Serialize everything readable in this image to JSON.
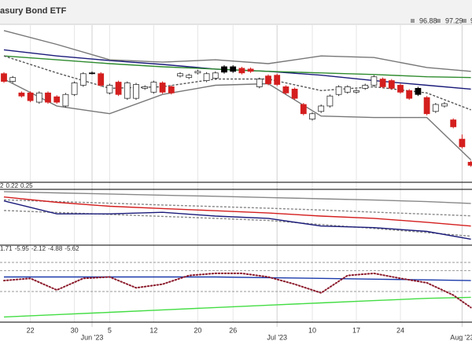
{
  "chart_data": [
    {
      "type": "candlestick",
      "title": "asury Bond ETF",
      "quote": [
        96.88,
        97.29,
        9
      ],
      "categories": [
        null,
        null,
        null,
        "22",
        null,
        null,
        null,
        null,
        "30",
        null,
        null,
        null,
        "5",
        null,
        null,
        null,
        null,
        "12",
        null,
        null,
        null,
        null,
        "20",
        null,
        null,
        null,
        "26",
        null,
        null,
        null,
        null,
        null,
        null,
        null,
        null,
        "10",
        null,
        null,
        null,
        null,
        "17",
        null,
        null,
        null,
        null,
        "24",
        null,
        null,
        null,
        null,
        null,
        null,
        null,
        null
      ],
      "months": [
        null,
        null,
        null,
        null,
        null,
        null,
        null,
        null,
        null,
        null,
        "Jun '23",
        null,
        null,
        null,
        null,
        null,
        null,
        null,
        null,
        null,
        null,
        null,
        null,
        null,
        null,
        null,
        null,
        null,
        null,
        null,
        null,
        "Jul '23",
        null,
        null,
        null,
        null,
        null,
        null,
        null,
        null,
        null,
        null,
        null,
        null,
        null,
        null,
        null,
        null,
        null,
        null,
        null,
        null,
        "Aug '23",
        null
      ],
      "open": [
        98.67,
        98.37,
        97.92,
        97.92,
        97.56,
        97.92,
        97.77,
        97.41,
        97.86,
        98.22,
        98.7,
        98.67,
        97.92,
        98.34,
        97.71,
        97.71,
        98.1,
        97.95,
        98.31,
        98.16,
        98.58,
        98.52,
        98.7,
        98.4,
        98.49,
        98.94,
        98.94,
        98.88,
        98.85,
        98.16,
        98.58,
        98.61,
        98.16,
        98.07,
        97.47,
        96.9,
        97.2,
        97.41,
        97.86,
        97.95,
        97.95,
        98.1,
        98.22,
        98.46,
        98.4,
        98.22,
        98.01,
        98.1,
        97.74,
        97.2,
        97.41,
        96.87,
        96.12,
        95.22
      ],
      "high": [
        98.73,
        98.58,
        97.98,
        97.98,
        97.98,
        97.98,
        97.83,
        97.92,
        98.37,
        98.73,
        98.76,
        98.73,
        98.28,
        98.4,
        98.37,
        98.31,
        98.22,
        98.4,
        98.37,
        98.22,
        98.73,
        98.67,
        98.82,
        98.73,
        98.76,
        99.0,
        99.0,
        98.94,
        98.91,
        98.52,
        98.64,
        98.67,
        98.22,
        98.13,
        97.53,
        97.17,
        97.47,
        97.86,
        98.22,
        98.22,
        98.07,
        98.28,
        98.61,
        98.52,
        98.46,
        98.28,
        98.07,
        98.16,
        97.8,
        97.53,
        97.56,
        96.93,
        96.3,
        95.28
      ],
      "low": [
        98.31,
        98.31,
        97.74,
        97.56,
        97.5,
        97.5,
        97.5,
        97.35,
        97.8,
        98.16,
        98.64,
        98.16,
        97.86,
        97.8,
        97.65,
        97.65,
        98.04,
        97.89,
        97.89,
        97.86,
        98.52,
        98.46,
        98.64,
        98.34,
        98.43,
        98.67,
        98.7,
        98.64,
        98.7,
        98.1,
        98.22,
        98.19,
        97.86,
        97.65,
        97.05,
        96.84,
        97.14,
        97.35,
        97.8,
        97.89,
        97.89,
        98.04,
        98.16,
        98.1,
        98.04,
        97.89,
        97.65,
        97.8,
        97.05,
        97.14,
        97.35,
        96.54,
        95.76,
        95.04
      ],
      "close": [
        98.37,
        98.52,
        97.8,
        97.62,
        97.92,
        97.56,
        97.56,
        97.86,
        98.31,
        98.67,
        98.68,
        98.22,
        98.22,
        97.86,
        98.31,
        98.25,
        98.16,
        98.34,
        97.95,
        97.92,
        98.67,
        98.61,
        98.76,
        98.67,
        98.7,
        98.73,
        98.76,
        98.7,
        98.76,
        98.46,
        98.28,
        98.25,
        97.92,
        97.71,
        97.11,
        97.11,
        97.41,
        97.8,
        98.16,
        98.16,
        98.01,
        98.22,
        98.55,
        98.16,
        98.1,
        97.95,
        97.71,
        97.86,
        97.11,
        97.47,
        97.5,
        96.6,
        95.82,
        95.1
      ],
      "colors": [
        "#d41e1e",
        "#ffffff",
        "#d41e1e",
        "#d41e1e",
        "#ffffff",
        "#d41e1e",
        "#d41e1e",
        "#ffffff",
        "#ffffff",
        "#ffffff",
        "#000000",
        "#d41e1e",
        "#ffffff",
        "#d41e1e",
        "#ffffff",
        "#ffffff",
        "#ffffff",
        "#ffffff",
        "#d41e1e",
        "#d41e1e",
        "#ffffff",
        "#ffffff",
        "#ffffff",
        "#ffffff",
        "#ffffff",
        "#000000",
        "#000000",
        "#d41e1e",
        "#d41e1e",
        "#ffffff",
        "#d41e1e",
        "#d41e1e",
        "#d41e1e",
        "#d41e1e",
        "#d41e1e",
        "#ffffff",
        "#ffffff",
        "#ffffff",
        "#ffffff",
        "#ffffff",
        "#ffffff",
        "#ffffff",
        "#ffffff",
        "#d41e1e",
        "#d41e1e",
        "#d41e1e",
        "#d41e1e",
        "#000000",
        "#d41e1e",
        "#ffffff",
        "#ffffff",
        "#d41e1e",
        "#d41e1e",
        "#d41e1e"
      ],
      "ylim": [
        94.5,
        100.5
      ],
      "series": [
        {
          "color": "#1a1a7a",
          "x": [
            0,
            6,
            12,
            18,
            24,
            30,
            36,
            42,
            48,
            53
          ],
          "values": [
            99.6,
            99.36,
            99.18,
            99.03,
            98.85,
            98.76,
            98.61,
            98.4,
            98.22,
            98.07
          ]
        },
        {
          "color": "#2e8b2e",
          "x": [
            0,
            6,
            12,
            18,
            24,
            30,
            36,
            42,
            48,
            53
          ],
          "values": [
            99.36,
            99.21,
            99.06,
            98.94,
            98.85,
            98.76,
            98.7,
            98.64,
            98.55,
            98.52
          ]
        },
        {
          "color": "#777777",
          "x": [
            0,
            6,
            12,
            18,
            24,
            30,
            36,
            42,
            48,
            53
          ],
          "values": [
            100.35,
            99.81,
            99.21,
            99.12,
            99.21,
            99.06,
            99.36,
            99.3,
            98.91,
            98.76
          ]
        },
        {
          "color": "#777777",
          "x": [
            0,
            6,
            12,
            18,
            24,
            30,
            36,
            42,
            48,
            53
          ],
          "values": [
            98.46,
            97.41,
            97.11,
            97.86,
            98.22,
            98.28,
            97.02,
            96.96,
            96.96,
            95.31
          ]
        },
        {
          "color": "#555555",
          "dash": true,
          "x": [
            0,
            6,
            12,
            18,
            24,
            30,
            36,
            42,
            48,
            53
          ],
          "values": [
            99.36,
            98.7,
            98.1,
            98.16,
            98.46,
            98.46,
            98.01,
            98.16,
            97.92,
            97.26
          ]
        }
      ]
    },
    {
      "type": "line",
      "legend_values": [
        2,
        0.22,
        0.25
      ],
      "legend_colors": [
        "#1a1a7a",
        "#d41e1e",
        "#777777"
      ],
      "ylim": [
        0.05,
        0.35
      ],
      "series": [
        {
          "color": "#888888",
          "x": [
            0,
            6,
            12,
            18,
            24,
            30,
            36,
            42,
            48,
            53
          ],
          "values": [
            0.346,
            0.339,
            0.333,
            0.326,
            0.32,
            0.313,
            0.306,
            0.299,
            0.29,
            0.28
          ]
        },
        {
          "color": "#888888",
          "dash": true,
          "x": [
            0,
            6,
            12,
            18,
            24,
            30,
            36,
            42,
            48,
            53
          ],
          "values": [
            0.3,
            0.29,
            0.281,
            0.271,
            0.262,
            0.253,
            0.243,
            0.231,
            0.22,
            0.21
          ]
        },
        {
          "color": "#888888",
          "dash": true,
          "x": [
            0,
            6,
            12,
            18,
            24,
            30,
            36,
            42,
            48,
            53
          ],
          "values": [
            0.24,
            0.229,
            0.218,
            0.207,
            0.196,
            0.184,
            0.161,
            0.139,
            0.116,
            0.096
          ]
        },
        {
          "color": "#d41e1e",
          "x": [
            0,
            6,
            12,
            18,
            24,
            30,
            36,
            42,
            48,
            53
          ],
          "values": [
            0.316,
            0.286,
            0.264,
            0.251,
            0.239,
            0.226,
            0.209,
            0.196,
            0.174,
            0.153
          ]
        },
        {
          "color": "#1a1a7a",
          "x": [
            0,
            6,
            12,
            18,
            24,
            30,
            36,
            42,
            48,
            53
          ],
          "values": [
            0.294,
            0.221,
            0.221,
            0.23,
            0.209,
            0.196,
            0.153,
            0.144,
            0.123,
            0.079
          ]
        }
      ]
    },
    {
      "type": "line",
      "legend_values": [
        1.71,
        -5.95,
        -2.12,
        -4.88,
        -5.62
      ],
      "legend_colors": [
        "#8b1a2b",
        "#1a3aaa",
        "#777777",
        "#22bb22",
        "#8b1a2b"
      ],
      "ylim": [
        -10,
        6
      ],
      "levels": [
        3.6,
        1.7,
        -3.2
      ],
      "series": [
        {
          "color": "#1a3aaa",
          "x": [
            0,
            6,
            12,
            18,
            24,
            30,
            36,
            42,
            48,
            53
          ],
          "values": [
            0.21,
            0.21,
            0.21,
            0.21,
            0.21,
            0.04,
            -0.13,
            -0.3,
            -0.47,
            -0.64
          ]
        },
        {
          "color": "#44dd44",
          "x": [
            0,
            6,
            12,
            18,
            24,
            30,
            36,
            42,
            48,
            53
          ],
          "values": [
            -9.15,
            -8.6,
            -8.06,
            -7.49,
            -6.94,
            -6.4,
            -5.87,
            -5.32,
            -4.8,
            -4.55
          ]
        },
        {
          "color": "#8b1a2b",
          "dotted": true,
          "x": [
            0,
            3,
            6,
            9,
            12,
            15,
            18,
            21,
            24,
            27,
            30,
            33,
            36,
            39,
            42,
            45,
            48,
            51,
            53
          ],
          "values": [
            -0.64,
            -0.13,
            -2.85,
            -0.13,
            0.21,
            -2.34,
            -1.49,
            0.55,
            1.06,
            1.06,
            0.21,
            -1.49,
            -3.53,
            0.55,
            1.06,
            -0.13,
            -1.15,
            -4.04,
            -6.94
          ]
        }
      ]
    }
  ]
}
